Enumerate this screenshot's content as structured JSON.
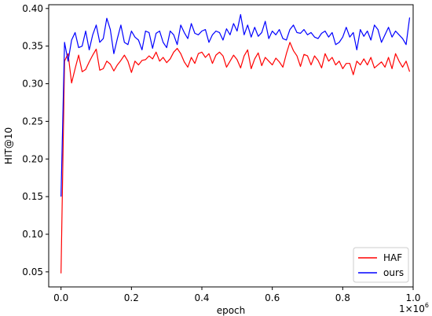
{
  "chart_data": {
    "type": "line",
    "xlabel": "epoch",
    "ylabel": "HIT@10",
    "x_scale_label": "1×10",
    "x_scale_exponent": "6",
    "xlim": [
      -0.035,
      1.0
    ],
    "ylim": [
      0.03,
      0.405
    ],
    "xticks": [
      0.0,
      0.2,
      0.4,
      0.6,
      0.8,
      1.0
    ],
    "xtick_labels": [
      "0.0",
      "0.2",
      "0.4",
      "0.6",
      "0.8",
      "1.0"
    ],
    "yticks": [
      0.05,
      0.1,
      0.15,
      0.2,
      0.25,
      0.3,
      0.35,
      0.4
    ],
    "ytick_labels": [
      "0.05",
      "0.10",
      "0.15",
      "0.20",
      "0.25",
      "0.30",
      "0.35",
      "0.40"
    ],
    "grid": false,
    "legend_position": "bottom-right",
    "x": [
      0.0,
      0.01,
      0.02,
      0.03,
      0.04,
      0.05,
      0.06,
      0.07,
      0.08,
      0.09,
      0.1,
      0.11,
      0.12,
      0.13,
      0.14,
      0.15,
      0.16,
      0.17,
      0.18,
      0.19,
      0.2,
      0.21,
      0.22,
      0.23,
      0.24,
      0.25,
      0.26,
      0.27,
      0.28,
      0.29,
      0.3,
      0.31,
      0.32,
      0.33,
      0.34,
      0.35,
      0.36,
      0.37,
      0.38,
      0.39,
      0.4,
      0.41,
      0.42,
      0.43,
      0.44,
      0.45,
      0.46,
      0.47,
      0.48,
      0.49,
      0.5,
      0.51,
      0.52,
      0.53,
      0.54,
      0.55,
      0.56,
      0.57,
      0.58,
      0.59,
      0.6,
      0.61,
      0.62,
      0.63,
      0.64,
      0.65,
      0.66,
      0.67,
      0.68,
      0.69,
      0.7,
      0.71,
      0.72,
      0.73,
      0.74,
      0.75,
      0.76,
      0.77,
      0.78,
      0.79,
      0.8,
      0.81,
      0.82,
      0.83,
      0.84,
      0.85,
      0.86,
      0.87,
      0.88,
      0.89,
      0.9,
      0.91,
      0.92,
      0.93,
      0.94,
      0.95,
      0.96,
      0.97,
      0.98,
      0.99
    ],
    "series": [
      {
        "name": "HAF",
        "color": "#ff0000",
        "values": [
          0.048,
          0.33,
          0.34,
          0.301,
          0.32,
          0.338,
          0.316,
          0.319,
          0.329,
          0.338,
          0.346,
          0.318,
          0.32,
          0.33,
          0.326,
          0.317,
          0.325,
          0.331,
          0.338,
          0.33,
          0.315,
          0.33,
          0.325,
          0.331,
          0.332,
          0.337,
          0.333,
          0.342,
          0.33,
          0.335,
          0.328,
          0.333,
          0.342,
          0.347,
          0.34,
          0.329,
          0.322,
          0.335,
          0.327,
          0.34,
          0.342,
          0.335,
          0.34,
          0.327,
          0.338,
          0.342,
          0.337,
          0.322,
          0.33,
          0.338,
          0.332,
          0.321,
          0.337,
          0.345,
          0.32,
          0.333,
          0.341,
          0.324,
          0.335,
          0.33,
          0.325,
          0.334,
          0.329,
          0.322,
          0.34,
          0.355,
          0.344,
          0.337,
          0.323,
          0.339,
          0.337,
          0.325,
          0.337,
          0.331,
          0.321,
          0.34,
          0.33,
          0.335,
          0.325,
          0.33,
          0.32,
          0.327,
          0.327,
          0.312,
          0.33,
          0.325,
          0.333,
          0.325,
          0.335,
          0.321,
          0.325,
          0.329,
          0.322,
          0.335,
          0.32,
          0.34,
          0.33,
          0.322,
          0.33,
          0.316
        ]
      },
      {
        "name": "ours",
        "color": "#0000ff",
        "values": [
          0.15,
          0.355,
          0.33,
          0.358,
          0.368,
          0.348,
          0.35,
          0.37,
          0.345,
          0.365,
          0.378,
          0.355,
          0.36,
          0.387,
          0.372,
          0.34,
          0.36,
          0.378,
          0.355,
          0.352,
          0.37,
          0.362,
          0.358,
          0.345,
          0.37,
          0.368,
          0.347,
          0.367,
          0.37,
          0.355,
          0.348,
          0.37,
          0.365,
          0.352,
          0.378,
          0.368,
          0.36,
          0.38,
          0.367,
          0.365,
          0.37,
          0.372,
          0.355,
          0.365,
          0.37,
          0.368,
          0.358,
          0.373,
          0.365,
          0.38,
          0.37,
          0.392,
          0.365,
          0.378,
          0.362,
          0.375,
          0.363,
          0.368,
          0.383,
          0.36,
          0.37,
          0.365,
          0.372,
          0.36,
          0.358,
          0.372,
          0.378,
          0.368,
          0.367,
          0.372,
          0.365,
          0.368,
          0.362,
          0.36,
          0.367,
          0.37,
          0.362,
          0.368,
          0.352,
          0.355,
          0.362,
          0.375,
          0.362,
          0.368,
          0.345,
          0.372,
          0.363,
          0.37,
          0.358,
          0.378,
          0.372,
          0.355,
          0.365,
          0.375,
          0.362,
          0.37,
          0.365,
          0.36,
          0.352,
          0.388
        ]
      }
    ]
  }
}
